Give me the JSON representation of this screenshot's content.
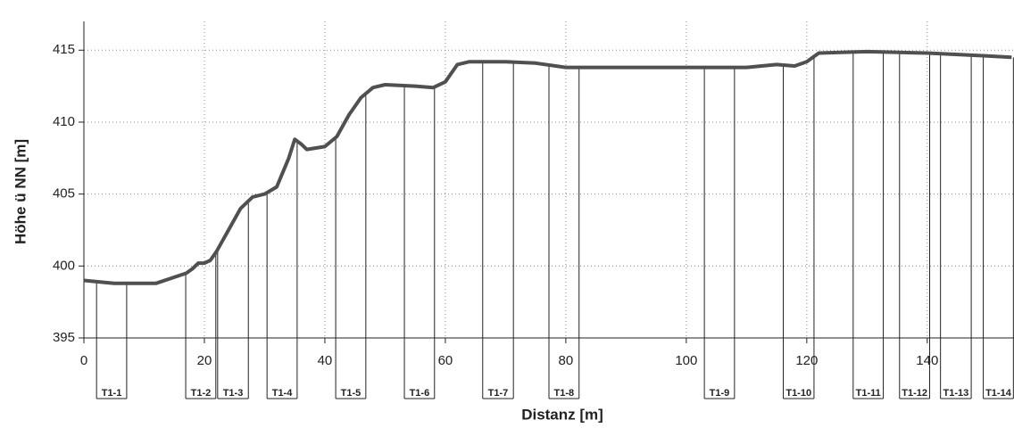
{
  "chart_data": {
    "type": "line",
    "x_label": "Distanz [m]",
    "y_label": "Höhe ü NN [m]",
    "x": [
      0,
      5,
      8,
      12,
      17,
      18,
      19,
      20,
      21,
      22,
      24,
      26,
      28,
      30,
      32,
      34,
      35,
      36,
      37,
      40,
      42,
      44,
      46,
      48,
      50,
      55,
      58,
      60,
      62,
      64,
      70,
      75,
      80,
      90,
      100,
      110,
      115,
      118,
      120,
      122,
      130,
      140,
      145,
      150,
      154
    ],
    "values": [
      399.0,
      398.8,
      398.8,
      398.8,
      399.5,
      399.8,
      400.2,
      400.2,
      400.4,
      401.0,
      402.5,
      404.0,
      404.8,
      405.0,
      405.5,
      407.5,
      408.8,
      408.5,
      408.1,
      408.3,
      409.0,
      410.5,
      411.7,
      412.4,
      412.6,
      412.5,
      412.4,
      412.8,
      414.0,
      414.2,
      414.2,
      414.1,
      413.8,
      413.8,
      413.8,
      413.8,
      414.0,
      413.9,
      414.2,
      414.8,
      414.9,
      414.8,
      414.7,
      414.6,
      414.5
    ],
    "color": "#505050",
    "xlim": [
      0,
      154.4
    ],
    "ylim": [
      395,
      417
    ],
    "xticks": [
      0,
      20,
      40,
      60,
      80,
      100,
      120,
      140
    ],
    "yticks": [
      395,
      400,
      405,
      410,
      415
    ],
    "grid": true,
    "transects": [
      {
        "label": "T1-1",
        "start": 2.1,
        "end": 7.1
      },
      {
        "label": "T1-2",
        "start": 16.9,
        "end": 21.9
      },
      {
        "label": "T1-3",
        "start": 22.2,
        "end": 27.3
      },
      {
        "label": "T1-4",
        "start": 30.4,
        "end": 35.4
      },
      {
        "label": "T1-5",
        "start": 41.8,
        "end": 46.8
      },
      {
        "label": "T1-6",
        "start": 53.2,
        "end": 58.2
      },
      {
        "label": "T1-7",
        "start": 66.2,
        "end": 71.3
      },
      {
        "label": "T1-8",
        "start": 77.2,
        "end": 82.2
      },
      {
        "label": "T1-9",
        "start": 103,
        "end": 108
      },
      {
        "label": "T1-10",
        "start": 116.1,
        "end": 121.2
      },
      {
        "label": "T1-11",
        "start": 127.7,
        "end": 132.7
      },
      {
        "label": "T1-12",
        "start": 135.4,
        "end": 140.4
      },
      {
        "label": "T1-13",
        "start": 142.2,
        "end": 147.3
      },
      {
        "label": "T1-14",
        "start": 149.3,
        "end": 154.3
      }
    ]
  }
}
